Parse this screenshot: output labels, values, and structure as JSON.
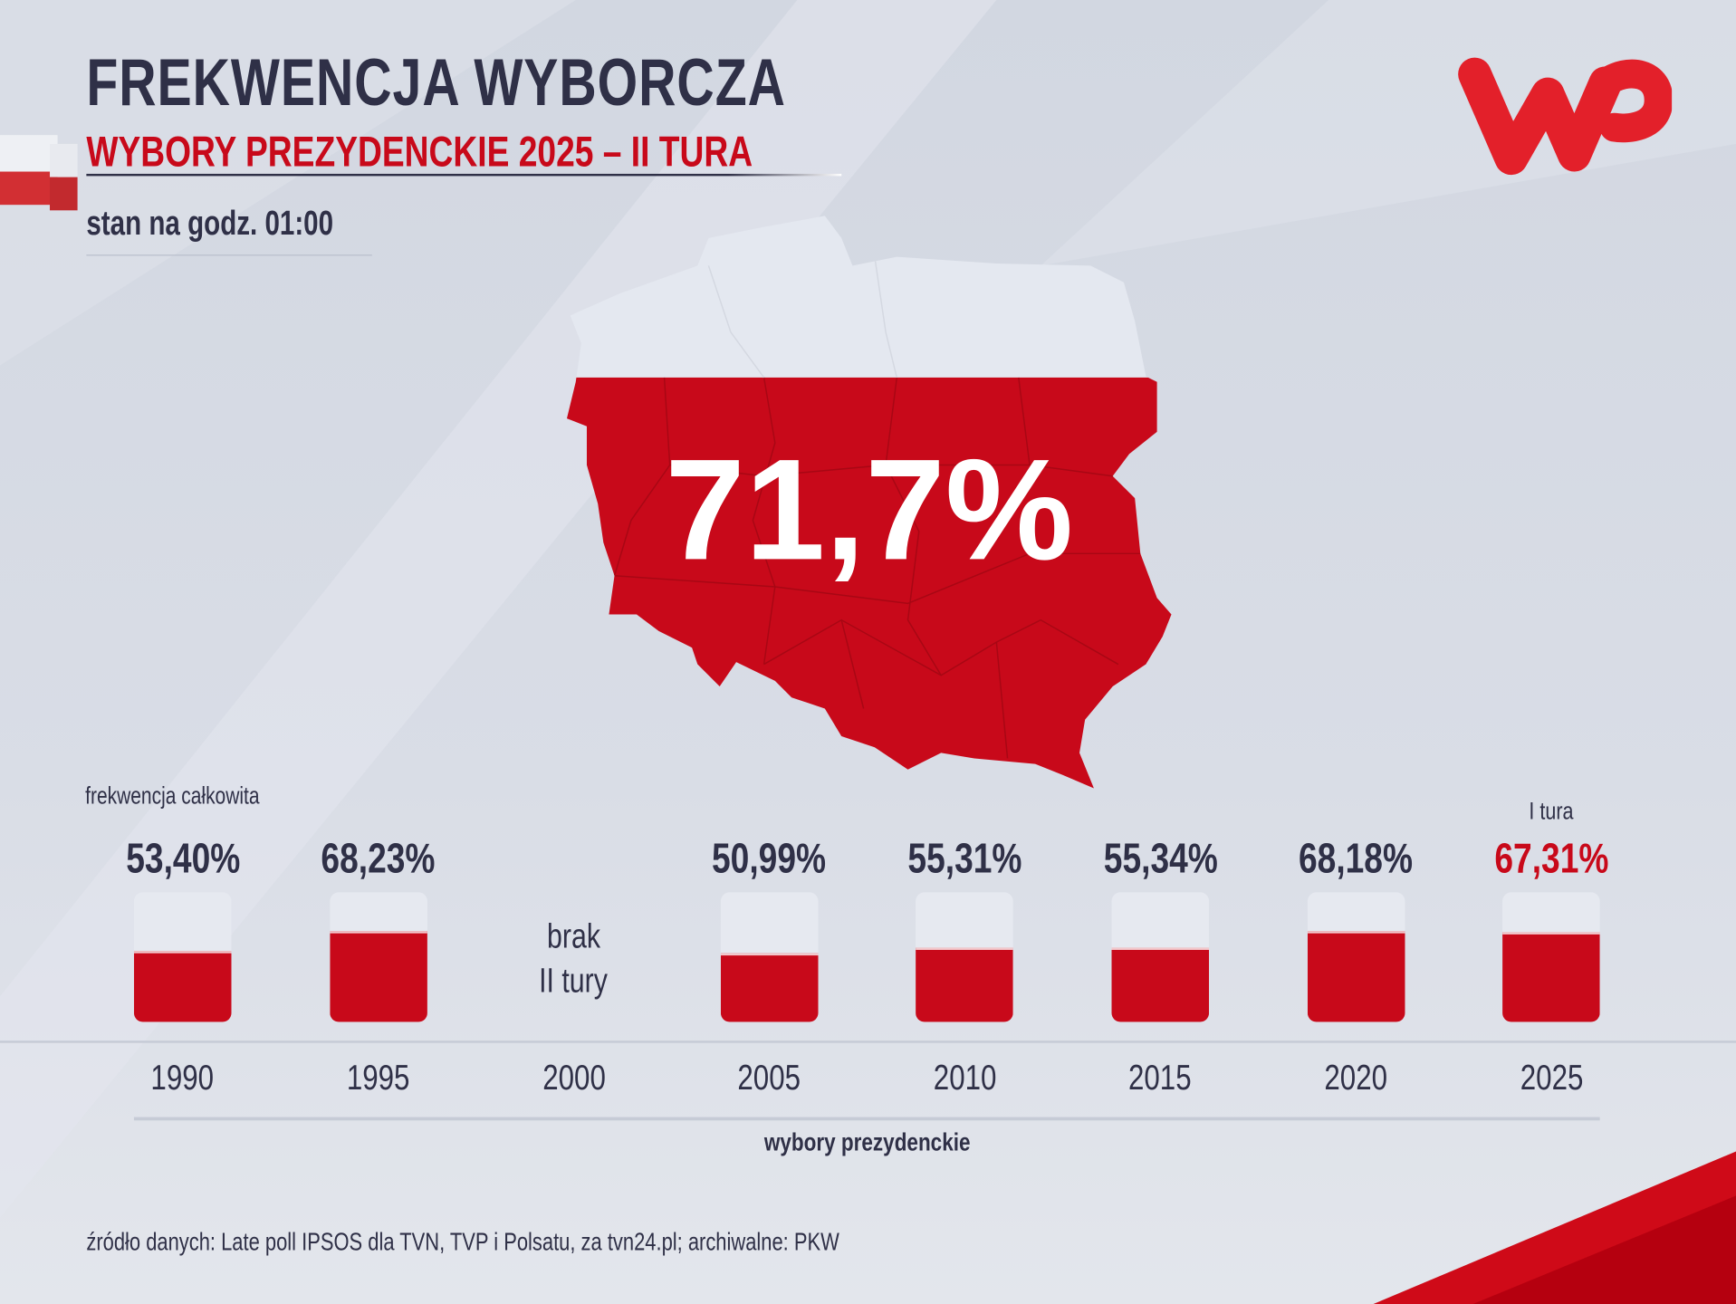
{
  "header": {
    "title": "FREKWENCJA WYBORCZA",
    "subtitle": "WYBORY PREZYDENCKIE 2025 – II TURA",
    "status_time": "stan na godz. 01:00"
  },
  "logo": {
    "text": "WP",
    "color": "#e3202a"
  },
  "map": {
    "headline_value": "71,7%",
    "fill_fraction": 0.717,
    "colors": {
      "white": "#e4e8f0",
      "red": "#c8091a"
    }
  },
  "chart_data": {
    "type": "bar",
    "title": "frekwencja całkowita",
    "xlabel": "wybory prezydenckie",
    "categories": [
      "1990",
      "1995",
      "2000",
      "2005",
      "2010",
      "2015",
      "2020",
      "2025"
    ],
    "values": [
      53.4,
      68.23,
      null,
      50.99,
      55.31,
      55.34,
      68.18,
      67.31
    ],
    "value_labels": [
      "53,40%",
      "68,23%",
      "",
      "50,99%",
      "55,31%",
      "55,34%",
      "68,18%",
      "67,31%"
    ],
    "ylim": [
      0,
      100
    ],
    "missing_note": {
      "category": "2000",
      "line1": "brak",
      "line2": "II tury"
    },
    "annotation": {
      "category": "2025",
      "text": "I tura",
      "color": "#c8091a"
    }
  },
  "footer": {
    "source": "źródło danych: Late poll IPSOS dla TVN, TVP i Polsatu, za tvn24.pl; archiwalne: PKW"
  }
}
